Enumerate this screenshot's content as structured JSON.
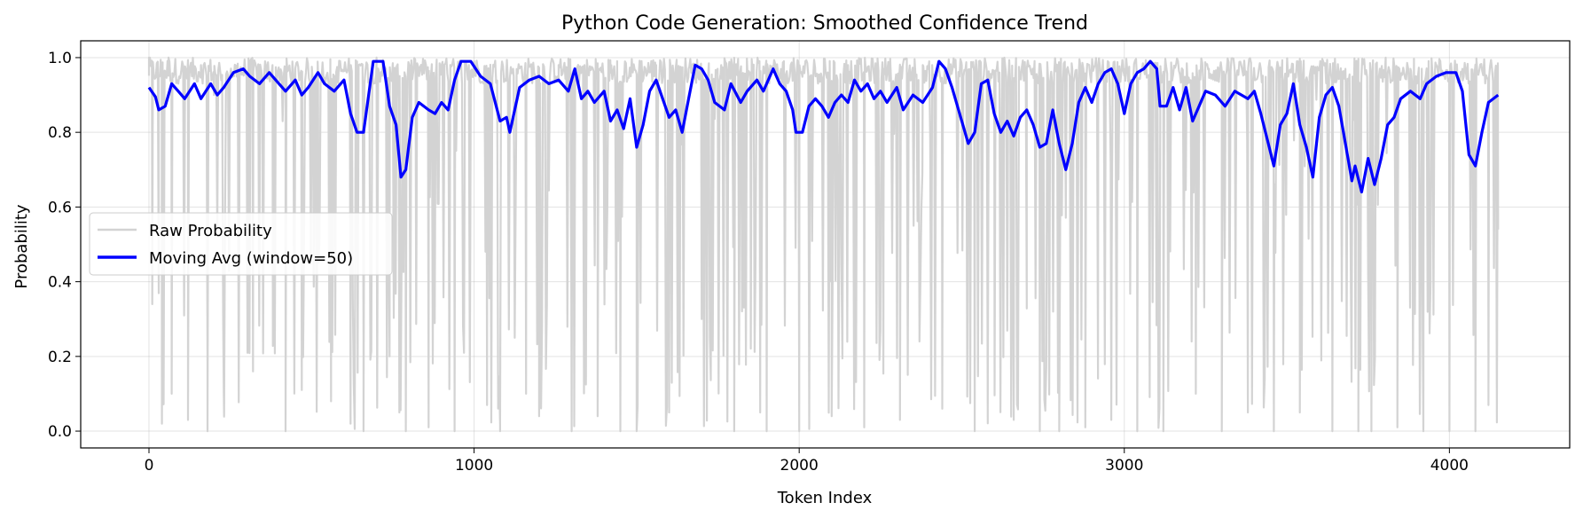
{
  "chart_data": {
    "type": "line",
    "title": "Python Code Generation: Smoothed Confidence Trend",
    "xlabel": "Token Index",
    "ylabel": "Probability",
    "xlim": [
      -210,
      4370
    ],
    "ylim": [
      -0.045,
      1.045
    ],
    "xticks": [
      0,
      1000,
      2000,
      3000,
      4000
    ],
    "xtick_labels": [
      "0",
      "1000",
      "2000",
      "3000",
      "4000"
    ],
    "yticks": [
      0.0,
      0.2,
      0.4,
      0.6,
      0.8,
      1.0
    ],
    "ytick_labels": [
      "0.0",
      "0.2",
      "0.4",
      "0.6",
      "0.8",
      "1.0"
    ],
    "grid": true,
    "legend_position": "center-left",
    "n_tokens": 4150,
    "series": [
      {
        "name": "Raw Probability",
        "color": "#d3d3d3",
        "kind": "raw",
        "description_points": [
          [
            0,
            1.0
          ],
          [
            10,
            0.34
          ],
          [
            30,
            0.95
          ],
          [
            40,
            0.02
          ],
          [
            60,
            1.0
          ],
          [
            70,
            0.1
          ],
          [
            120,
            0.03
          ],
          [
            160,
            0.98
          ],
          [
            180,
            0.0
          ],
          [
            200,
            0.9
          ],
          [
            230,
            0.11
          ],
          [
            270,
            0.95
          ],
          [
            320,
            0.16
          ],
          [
            380,
            0.98
          ],
          [
            420,
            0.0
          ],
          [
            440,
            0.95
          ],
          [
            470,
            0.11
          ],
          [
            520,
            0.96
          ],
          [
            560,
            0.08
          ],
          [
            620,
            0.02
          ],
          [
            640,
            0.99
          ],
          [
            660,
            0.0
          ],
          [
            700,
            1.0
          ],
          [
            740,
            0.2
          ],
          [
            770,
            0.05
          ],
          [
            790,
            0.0
          ],
          [
            820,
            0.95
          ],
          [
            860,
            0.01
          ],
          [
            900,
            0.98
          ],
          [
            940,
            0.0
          ],
          [
            1000,
            0.99
          ],
          [
            1040,
            0.07
          ],
          [
            1080,
            0.0
          ],
          [
            1120,
            0.97
          ],
          [
            1160,
            0.1
          ],
          [
            1200,
            0.04
          ],
          [
            1260,
            0.98
          ],
          [
            1300,
            0.0
          ],
          [
            1340,
            0.98
          ],
          [
            1380,
            0.04
          ],
          [
            1420,
            0.96
          ],
          [
            1450,
            0.0
          ],
          [
            1500,
            0.0
          ],
          [
            1560,
            0.98
          ],
          [
            1600,
            0.05
          ],
          [
            1660,
            0.97
          ],
          [
            1700,
            0.3
          ],
          [
            1760,
            0.98
          ],
          [
            1800,
            0.0
          ],
          [
            1850,
            0.96
          ],
          [
            1880,
            0.05
          ],
          [
            1900,
            0.0
          ],
          [
            1950,
            0.98
          ],
          [
            2000,
            0.0
          ],
          [
            2050,
            0.95
          ],
          [
            2100,
            0.04
          ],
          [
            2150,
            0.98
          ],
          [
            2200,
            0.01
          ],
          [
            2260,
            0.97
          ],
          [
            2310,
            0.03
          ],
          [
            2380,
            0.98
          ],
          [
            2440,
            0.06
          ],
          [
            2500,
            0.98
          ],
          [
            2540,
            0.0
          ],
          [
            2580,
            0.06
          ],
          [
            2600,
            0.95
          ],
          [
            2660,
            0.03
          ],
          [
            2700,
            0.97
          ],
          [
            2740,
            0.0
          ],
          [
            2800,
            0.0
          ],
          [
            2840,
            0.97
          ],
          [
            2880,
            0.01
          ],
          [
            2920,
            0.98
          ],
          [
            2960,
            0.03
          ],
          [
            3000,
            0.97
          ],
          [
            3040,
            0.0
          ],
          [
            3080,
            0.98
          ],
          [
            3120,
            0.0
          ],
          [
            3180,
            0.95
          ],
          [
            3220,
            0.1
          ],
          [
            3260,
            0.97
          ],
          [
            3300,
            0.0
          ],
          [
            3340,
            0.96
          ],
          [
            3380,
            0.05
          ],
          [
            3420,
            0.97
          ],
          [
            3460,
            0.0
          ],
          [
            3500,
            0.98
          ],
          [
            3540,
            0.05
          ],
          [
            3580,
            0.97
          ],
          [
            3640,
            0.0
          ],
          [
            3680,
            0.97
          ],
          [
            3720,
            0.0
          ],
          [
            3760,
            0.0
          ],
          [
            3800,
            0.96
          ],
          [
            3840,
            0.01
          ],
          [
            3880,
            0.97
          ],
          [
            3920,
            0.0
          ],
          [
            3960,
            0.98
          ],
          [
            4000,
            0.0
          ],
          [
            4040,
            0.97
          ],
          [
            4080,
            0.0
          ],
          [
            4120,
            0.07
          ],
          [
            4150,
            0.54
          ]
        ]
      },
      {
        "name": "Moving Avg (window=50)",
        "color": "#0000ff",
        "kind": "smooth",
        "points": [
          [
            0,
            0.92
          ],
          [
            20,
            0.895
          ],
          [
            30,
            0.86
          ],
          [
            50,
            0.87
          ],
          [
            70,
            0.93
          ],
          [
            90,
            0.91
          ],
          [
            110,
            0.89
          ],
          [
            140,
            0.93
          ],
          [
            160,
            0.89
          ],
          [
            190,
            0.93
          ],
          [
            210,
            0.9
          ],
          [
            230,
            0.92
          ],
          [
            260,
            0.96
          ],
          [
            290,
            0.97
          ],
          [
            310,
            0.95
          ],
          [
            340,
            0.93
          ],
          [
            370,
            0.96
          ],
          [
            400,
            0.93
          ],
          [
            420,
            0.91
          ],
          [
            450,
            0.94
          ],
          [
            470,
            0.9
          ],
          [
            490,
            0.92
          ],
          [
            520,
            0.96
          ],
          [
            540,
            0.93
          ],
          [
            570,
            0.91
          ],
          [
            600,
            0.94
          ],
          [
            620,
            0.85
          ],
          [
            640,
            0.8
          ],
          [
            660,
            0.8
          ],
          [
            690,
            0.99
          ],
          [
            720,
            0.99
          ],
          [
            740,
            0.87
          ],
          [
            760,
            0.82
          ],
          [
            775,
            0.68
          ],
          [
            790,
            0.7
          ],
          [
            810,
            0.84
          ],
          [
            830,
            0.88
          ],
          [
            860,
            0.86
          ],
          [
            880,
            0.85
          ],
          [
            900,
            0.88
          ],
          [
            920,
            0.86
          ],
          [
            940,
            0.94
          ],
          [
            960,
            0.99
          ],
          [
            990,
            0.99
          ],
          [
            1020,
            0.95
          ],
          [
            1050,
            0.93
          ],
          [
            1080,
            0.83
          ],
          [
            1100,
            0.84
          ],
          [
            1110,
            0.8
          ],
          [
            1140,
            0.92
          ],
          [
            1170,
            0.94
          ],
          [
            1200,
            0.95
          ],
          [
            1230,
            0.93
          ],
          [
            1260,
            0.94
          ],
          [
            1290,
            0.91
          ],
          [
            1310,
            0.97
          ],
          [
            1330,
            0.89
          ],
          [
            1350,
            0.91
          ],
          [
            1370,
            0.88
          ],
          [
            1400,
            0.91
          ],
          [
            1420,
            0.83
          ],
          [
            1440,
            0.86
          ],
          [
            1460,
            0.81
          ],
          [
            1480,
            0.89
          ],
          [
            1500,
            0.76
          ],
          [
            1520,
            0.82
          ],
          [
            1540,
            0.91
          ],
          [
            1560,
            0.94
          ],
          [
            1580,
            0.89
          ],
          [
            1600,
            0.84
          ],
          [
            1620,
            0.86
          ],
          [
            1640,
            0.8
          ],
          [
            1660,
            0.89
          ],
          [
            1680,
            0.98
          ],
          [
            1700,
            0.97
          ],
          [
            1720,
            0.94
          ],
          [
            1740,
            0.88
          ],
          [
            1770,
            0.86
          ],
          [
            1790,
            0.93
          ],
          [
            1820,
            0.88
          ],
          [
            1840,
            0.91
          ],
          [
            1870,
            0.94
          ],
          [
            1890,
            0.91
          ],
          [
            1920,
            0.97
          ],
          [
            1940,
            0.93
          ],
          [
            1960,
            0.91
          ],
          [
            1980,
            0.86
          ],
          [
            1990,
            0.8
          ],
          [
            2010,
            0.8
          ],
          [
            2030,
            0.87
          ],
          [
            2050,
            0.89
          ],
          [
            2070,
            0.87
          ],
          [
            2090,
            0.84
          ],
          [
            2110,
            0.88
          ],
          [
            2130,
            0.9
          ],
          [
            2150,
            0.88
          ],
          [
            2170,
            0.94
          ],
          [
            2190,
            0.91
          ],
          [
            2210,
            0.93
          ],
          [
            2230,
            0.89
          ],
          [
            2250,
            0.91
          ],
          [
            2270,
            0.88
          ],
          [
            2300,
            0.92
          ],
          [
            2320,
            0.86
          ],
          [
            2350,
            0.9
          ],
          [
            2380,
            0.88
          ],
          [
            2410,
            0.92
          ],
          [
            2430,
            0.99
          ],
          [
            2450,
            0.97
          ],
          [
            2470,
            0.92
          ],
          [
            2500,
            0.83
          ],
          [
            2520,
            0.77
          ],
          [
            2540,
            0.8
          ],
          [
            2560,
            0.93
          ],
          [
            2580,
            0.94
          ],
          [
            2600,
            0.85
          ],
          [
            2620,
            0.8
          ],
          [
            2640,
            0.83
          ],
          [
            2660,
            0.79
          ],
          [
            2680,
            0.84
          ],
          [
            2700,
            0.86
          ],
          [
            2720,
            0.82
          ],
          [
            2740,
            0.76
          ],
          [
            2760,
            0.77
          ],
          [
            2780,
            0.86
          ],
          [
            2800,
            0.77
          ],
          [
            2820,
            0.7
          ],
          [
            2840,
            0.77
          ],
          [
            2860,
            0.88
          ],
          [
            2880,
            0.92
          ],
          [
            2900,
            0.88
          ],
          [
            2920,
            0.93
          ],
          [
            2940,
            0.96
          ],
          [
            2960,
            0.97
          ],
          [
            2980,
            0.93
          ],
          [
            3000,
            0.85
          ],
          [
            3020,
            0.93
          ],
          [
            3040,
            0.96
          ],
          [
            3060,
            0.97
          ],
          [
            3080,
            0.99
          ],
          [
            3100,
            0.97
          ],
          [
            3110,
            0.87
          ],
          [
            3130,
            0.87
          ],
          [
            3150,
            0.92
          ],
          [
            3170,
            0.86
          ],
          [
            3190,
            0.92
          ],
          [
            3210,
            0.83
          ],
          [
            3230,
            0.87
          ],
          [
            3250,
            0.91
          ],
          [
            3280,
            0.9
          ],
          [
            3310,
            0.87
          ],
          [
            3340,
            0.91
          ],
          [
            3380,
            0.89
          ],
          [
            3400,
            0.91
          ],
          [
            3420,
            0.85
          ],
          [
            3440,
            0.78
          ],
          [
            3460,
            0.71
          ],
          [
            3480,
            0.82
          ],
          [
            3500,
            0.85
          ],
          [
            3520,
            0.93
          ],
          [
            3540,
            0.82
          ],
          [
            3560,
            0.76
          ],
          [
            3580,
            0.68
          ],
          [
            3600,
            0.84
          ],
          [
            3620,
            0.9
          ],
          [
            3640,
            0.92
          ],
          [
            3660,
            0.87
          ],
          [
            3680,
            0.77
          ],
          [
            3700,
            0.67
          ],
          [
            3710,
            0.71
          ],
          [
            3730,
            0.64
          ],
          [
            3750,
            0.73
          ],
          [
            3770,
            0.66
          ],
          [
            3790,
            0.73
          ],
          [
            3810,
            0.82
          ],
          [
            3830,
            0.84
          ],
          [
            3850,
            0.89
          ],
          [
            3880,
            0.91
          ],
          [
            3910,
            0.89
          ],
          [
            3930,
            0.93
          ],
          [
            3960,
            0.95
          ],
          [
            3990,
            0.96
          ],
          [
            4020,
            0.96
          ],
          [
            4040,
            0.91
          ],
          [
            4060,
            0.74
          ],
          [
            4080,
            0.71
          ],
          [
            4100,
            0.8
          ],
          [
            4120,
            0.88
          ],
          [
            4150,
            0.9
          ]
        ]
      }
    ]
  }
}
